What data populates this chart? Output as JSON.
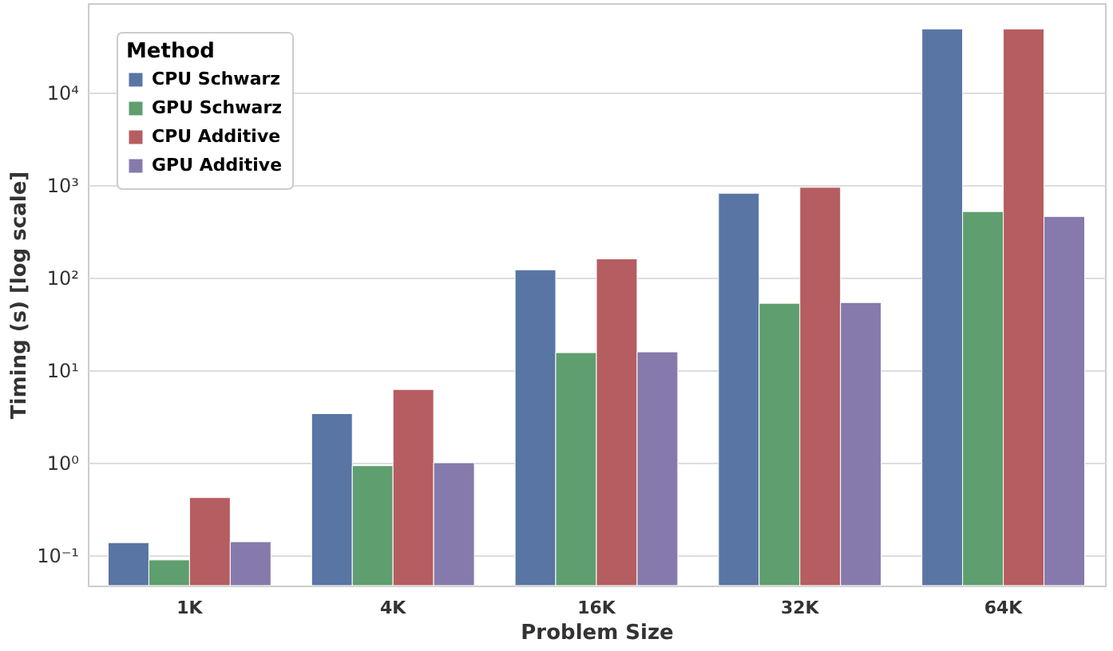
{
  "chart_data": {
    "type": "bar",
    "xlabel": "Problem Size",
    "ylabel": "Timing (s) [log scale]",
    "legend_title": "Method",
    "categories": [
      "1K",
      "4K",
      "16K",
      "32K",
      "64K"
    ],
    "series": [
      {
        "name": "CPU Schwarz",
        "color": "#5975a4",
        "values": [
          0.137,
          3.4,
          122,
          820,
          49000
        ]
      },
      {
        "name": "GPU Schwarz",
        "color": "#5f9e6e",
        "values": [
          0.089,
          0.93,
          15.5,
          53,
          520
        ]
      },
      {
        "name": "CPU Additive",
        "color": "#b55d60",
        "values": [
          0.42,
          6.2,
          160,
          950,
          49000
        ]
      },
      {
        "name": "GPU Additive",
        "color": "#857aab",
        "values": [
          0.14,
          1.0,
          15.8,
          54,
          460
        ]
      }
    ],
    "log": true,
    "ylim": [
      0.047,
      93000
    ],
    "yticks": [
      {
        "value": 0.1,
        "label": "10⁻¹"
      },
      {
        "value": 1,
        "label": "10⁰"
      },
      {
        "value": 10,
        "label": "10¹"
      },
      {
        "value": 100,
        "label": "10²"
      },
      {
        "value": 1000,
        "label": "10³"
      },
      {
        "value": 10000,
        "label": "10⁴"
      }
    ],
    "grid": "y",
    "legend": "top left"
  }
}
